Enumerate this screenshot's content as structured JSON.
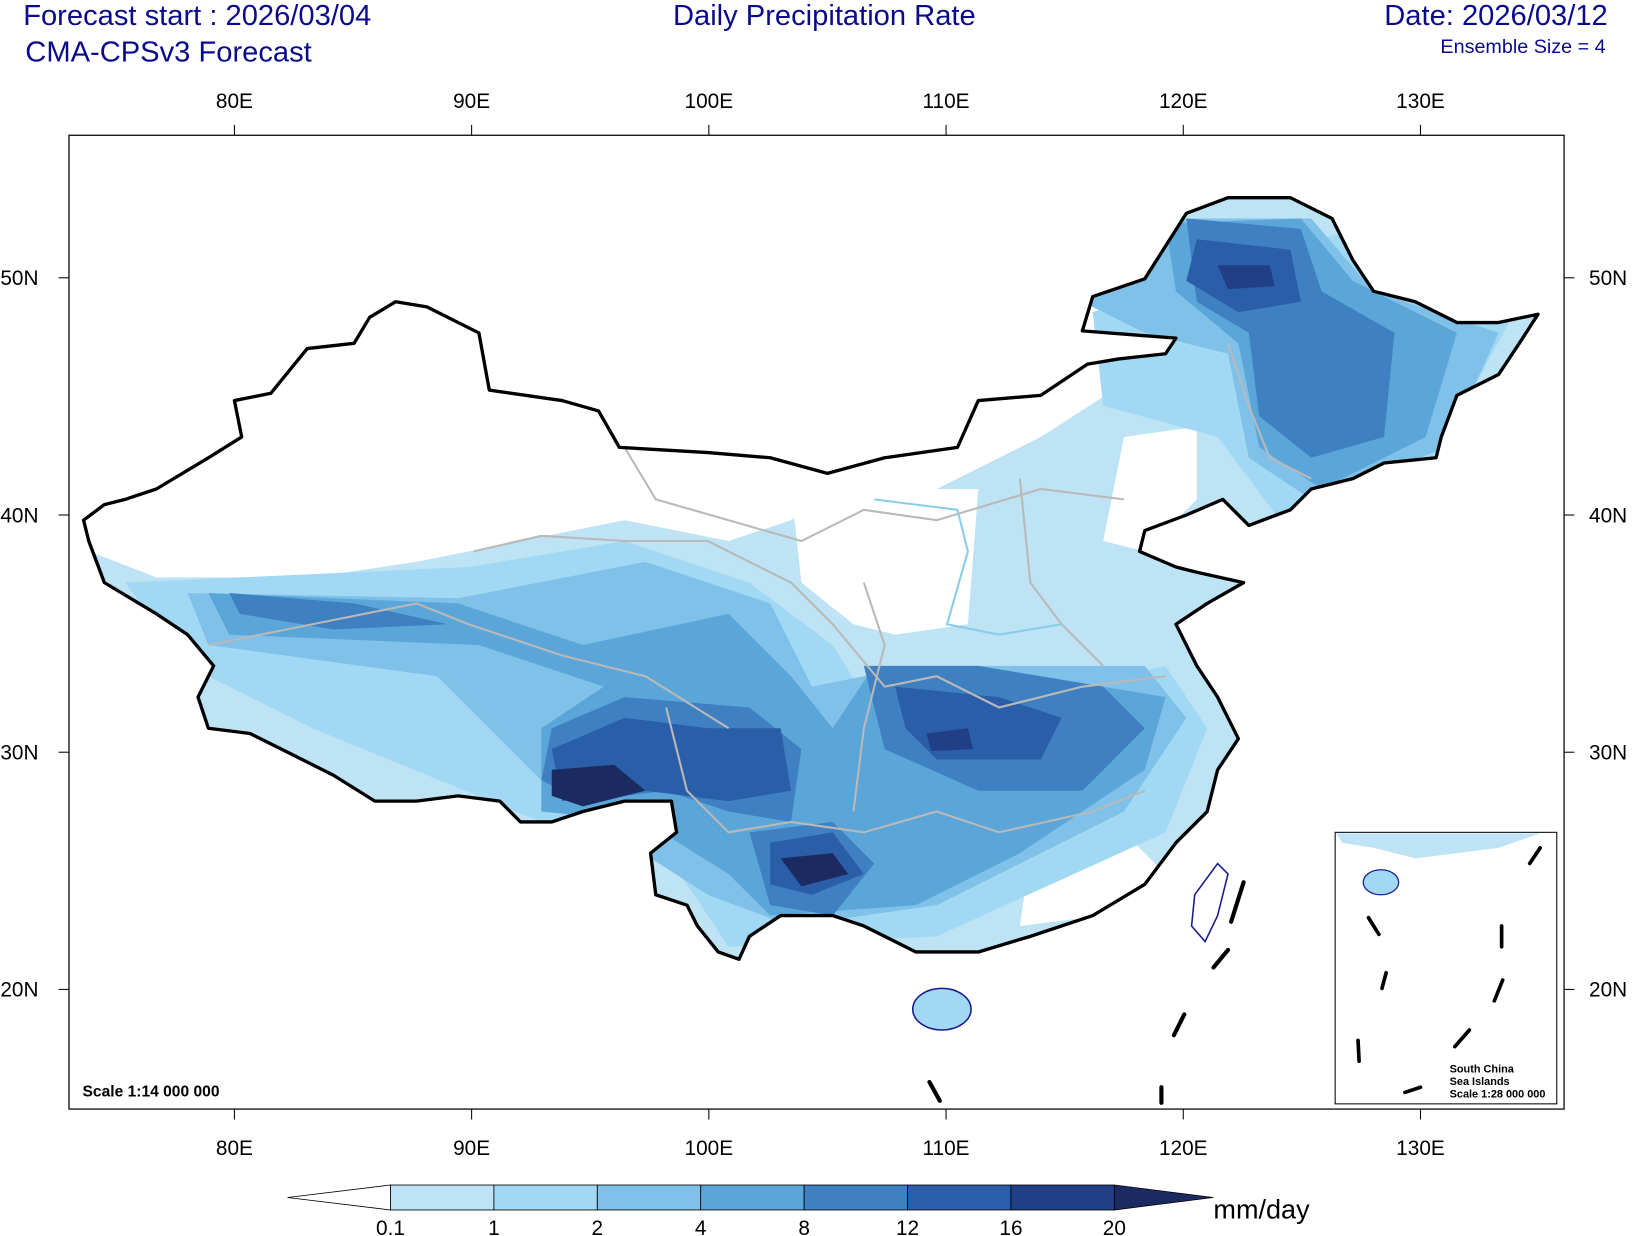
{
  "header": {
    "forecast_start": "Forecast start : 2026/03/04",
    "model": "CMA-CPSv3 Forecast",
    "title": "Daily Precipitation Rate",
    "date": "Date: 2026/03/12",
    "ensemble": "Ensemble Size = 4"
  },
  "axes": {
    "lon_labels": [
      "80E",
      "90E",
      "100E",
      "110E",
      "120E",
      "130E"
    ],
    "lat_labels": [
      "50N",
      "40N",
      "30N",
      "20N"
    ]
  },
  "map": {
    "scale": "Scale 1:14 000 000",
    "inset": {
      "line1": "South China",
      "line2": "Sea Islands",
      "line3": "Scale 1:28 000 000"
    }
  },
  "colorbar": {
    "levels": [
      "0.1",
      "1",
      "2",
      "4",
      "8",
      "12",
      "16",
      "20"
    ],
    "units": "mm/day",
    "colors": [
      "#ffffff",
      "#bde3f5",
      "#a1d9f4",
      "#7fc1e8",
      "#5ba6d8",
      "#3e80c1",
      "#2a5ea8",
      "#213f87",
      "#1b2b62"
    ]
  }
}
